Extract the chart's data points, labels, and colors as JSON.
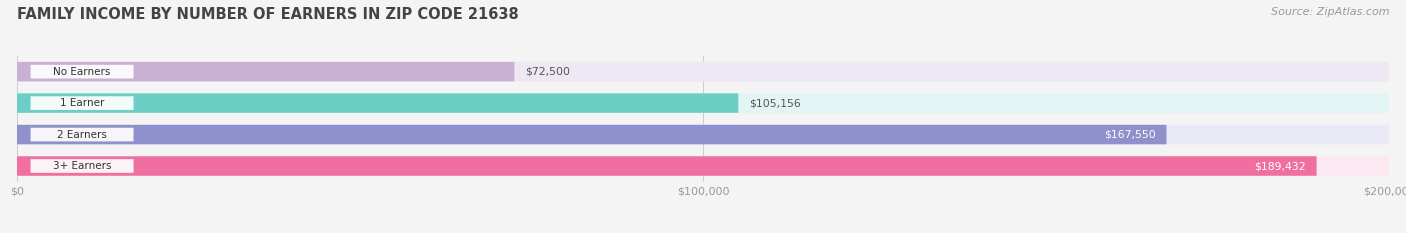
{
  "title": "FAMILY INCOME BY NUMBER OF EARNERS IN ZIP CODE 21638",
  "source": "Source: ZipAtlas.com",
  "categories": [
    "No Earners",
    "1 Earner",
    "2 Earners",
    "3+ Earners"
  ],
  "values": [
    72500,
    105156,
    167550,
    189432
  ],
  "labels": [
    "$72,500",
    "$105,156",
    "$167,550",
    "$189,432"
  ],
  "bar_colors": [
    "#c9b0d5",
    "#6dcec5",
    "#9090cc",
    "#ee6fa0"
  ],
  "bar_bg_colors": [
    "#ede8f3",
    "#e2f5f4",
    "#eaeaf6",
    "#fce8f1"
  ],
  "xmax": 200000,
  "xticklabels": [
    "$0",
    "$100,000",
    "$200,000"
  ],
  "xtick_vals": [
    0,
    100000,
    200000
  ],
  "bg_color": "#f4f4f4",
  "title_color": "#444444",
  "title_fontsize": 10.5,
  "source_fontsize": 8,
  "bar_height": 0.62,
  "label_inside_color": "#ffffff",
  "label_outside_color": "#555555",
  "label_dark_color": "#555555",
  "value_threshold": 150000
}
